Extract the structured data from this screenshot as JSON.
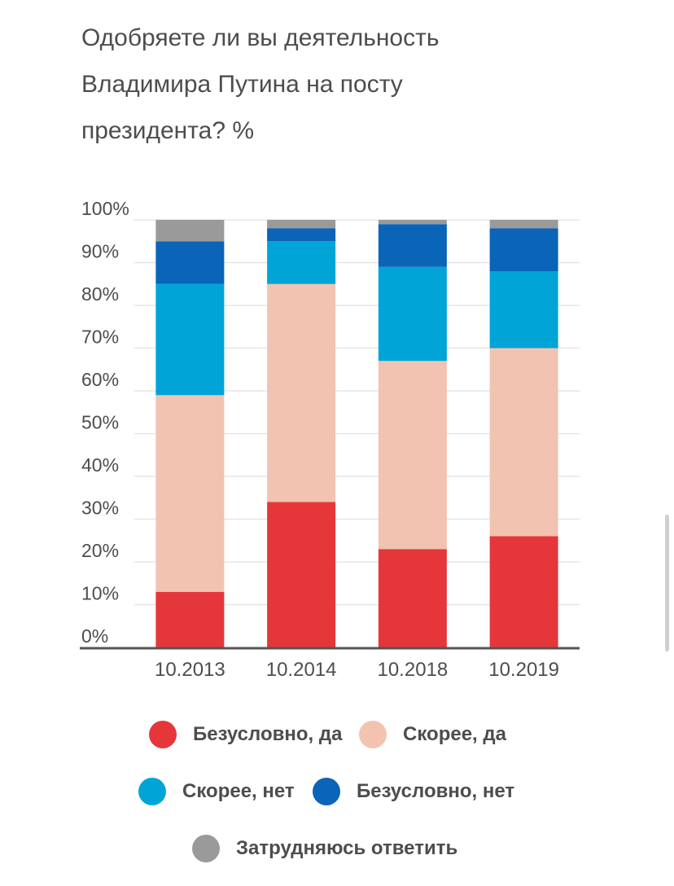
{
  "title_lines": [
    "Одобряете ли вы деятельность",
    "Владимира Путина на посту",
    "президента? %"
  ],
  "chart_data": {
    "type": "bar",
    "stacked": true,
    "title": "Одобряете ли вы деятельность Владимира Путина на посту президента? %",
    "categories": [
      "10.2013",
      "10.2014",
      "10.2018",
      "10.2019"
    ],
    "series": [
      {
        "name": "Безусловно, да",
        "color": "#e5373a",
        "values": [
          13,
          34,
          23,
          26
        ]
      },
      {
        "name": "Скорее, да",
        "color": "#f2c3b1",
        "values": [
          46,
          51,
          44,
          44
        ]
      },
      {
        "name": "Скорее, нет",
        "color": "#00a4d6",
        "values": [
          26,
          10,
          22,
          18
        ]
      },
      {
        "name": "Безусловно, нет",
        "color": "#0a64b8",
        "values": [
          10,
          3,
          10,
          10
        ]
      },
      {
        "name": "Затрудняюсь ответить",
        "color": "#9a9a9a",
        "values": [
          5,
          2,
          1,
          2
        ]
      }
    ],
    "y_ticks": [
      "0%",
      "10%",
      "20%",
      "30%",
      "40%",
      "50%",
      "60%",
      "70%",
      "80%",
      "90%",
      "100%"
    ],
    "ylim": [
      0,
      100
    ],
    "grid": true,
    "legend_position": "bottom"
  }
}
